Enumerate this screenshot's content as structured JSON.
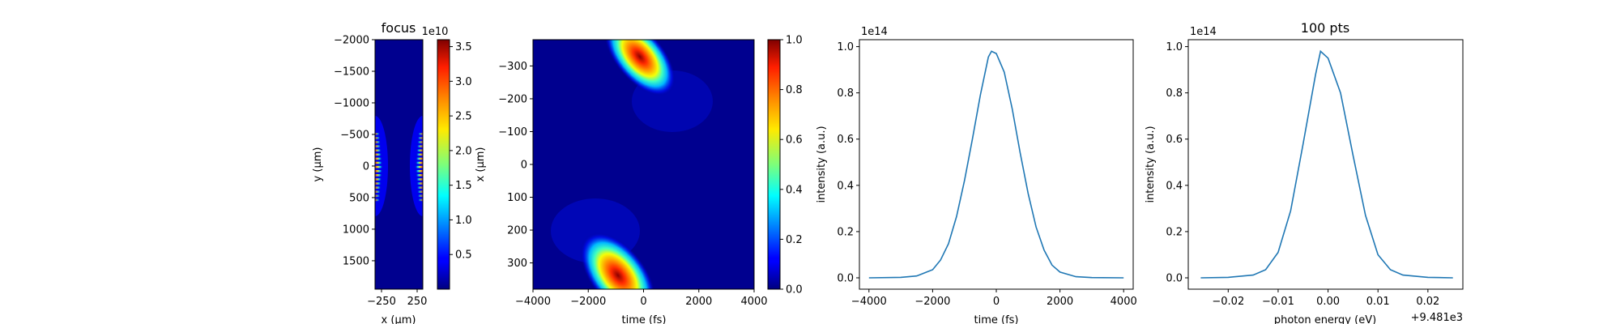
{
  "chart_data": [
    {
      "type": "heatmap",
      "title": "focus",
      "xlabel": "x (µm)",
      "ylabel": "y (µm)",
      "xticks": [
        "−250",
        "250"
      ],
      "yticks": [
        "−2000",
        "−1500",
        "−1000",
        "−500",
        "0",
        "500",
        "1000",
        "1500"
      ],
      "ylim": [
        1950,
        -2000
      ],
      "colormap": "jet",
      "colorbar": {
        "offset_label": "1e10",
        "ticks": [
          "0.5",
          "1.0",
          "1.5",
          "2.0",
          "2.5",
          "3.0",
          "3.5"
        ],
        "range": [
          0,
          3.6
        ]
      }
    },
    {
      "type": "heatmap",
      "title": "",
      "xlabel": "time (fs)",
      "ylabel": "x (µm)",
      "xticks": [
        "−4000",
        "−2000",
        "0",
        "2000",
        "4000"
      ],
      "yticks": [
        "−300",
        "−200",
        "−100",
        "0",
        "100",
        "200",
        "300"
      ],
      "xlim": [
        -4000,
        4000
      ],
      "ylim": [
        380,
        -380
      ],
      "colormap": "jet",
      "colorbar": {
        "ticks": [
          "0.0",
          "0.2",
          "0.4",
          "0.6",
          "0.8",
          "1.0"
        ],
        "range": [
          0,
          1
        ]
      }
    },
    {
      "type": "line",
      "title": "",
      "xlabel": "time (fs)",
      "ylabel": "intensity (a.u.)",
      "offset_label": "1e14",
      "xticks": [
        "−4000",
        "−2000",
        "0",
        "2000",
        "4000"
      ],
      "yticks": [
        "0.0",
        "0.2",
        "0.4",
        "0.6",
        "0.8",
        "1.0"
      ],
      "xlim": [
        -4300,
        4300
      ],
      "ylim": [
        -0.049,
        1.03
      ],
      "color": "#1f77b4",
      "series": [
        {
          "x": [
            -4000,
            -3000,
            -2500,
            -2000,
            -1750,
            -1500,
            -1250,
            -1000,
            -750,
            -500,
            -250,
            -150,
            0,
            250,
            500,
            750,
            1000,
            1250,
            1500,
            1750,
            2000,
            2500,
            3000,
            4000
          ],
          "values": [
            0.0,
            0.002,
            0.008,
            0.035,
            0.077,
            0.148,
            0.265,
            0.42,
            0.6,
            0.79,
            0.955,
            0.98,
            0.97,
            0.89,
            0.73,
            0.54,
            0.365,
            0.22,
            0.12,
            0.055,
            0.025,
            0.005,
            0.001,
            0.0
          ]
        }
      ]
    },
    {
      "type": "line",
      "title": "100 pts",
      "xlabel": "photon energy (eV)",
      "ylabel": "intensity (a.u.)",
      "offset_label": "1e14",
      "x_offset_label": "+9.481e3",
      "xticks": [
        "−0.02",
        "−0.01",
        "0.00",
        "0.01",
        "0.02"
      ],
      "yticks": [
        "0.0",
        "0.2",
        "0.4",
        "0.6",
        "0.8",
        "1.0"
      ],
      "xlim": [
        -0.028,
        0.027
      ],
      "ylim": [
        -0.049,
        1.03
      ],
      "color": "#1f77b4",
      "series": [
        {
          "x": [
            -0.0255,
            -0.02,
            -0.015,
            -0.0125,
            -0.01,
            -0.0075,
            -0.005,
            -0.0025,
            -0.0015,
            0.0,
            0.0025,
            0.005,
            0.0075,
            0.01,
            0.0125,
            0.015,
            0.02,
            0.025
          ],
          "values": [
            0.0,
            0.002,
            0.012,
            0.035,
            0.11,
            0.29,
            0.58,
            0.88,
            0.98,
            0.95,
            0.8,
            0.53,
            0.27,
            0.1,
            0.035,
            0.012,
            0.002,
            0.0
          ]
        }
      ]
    }
  ]
}
